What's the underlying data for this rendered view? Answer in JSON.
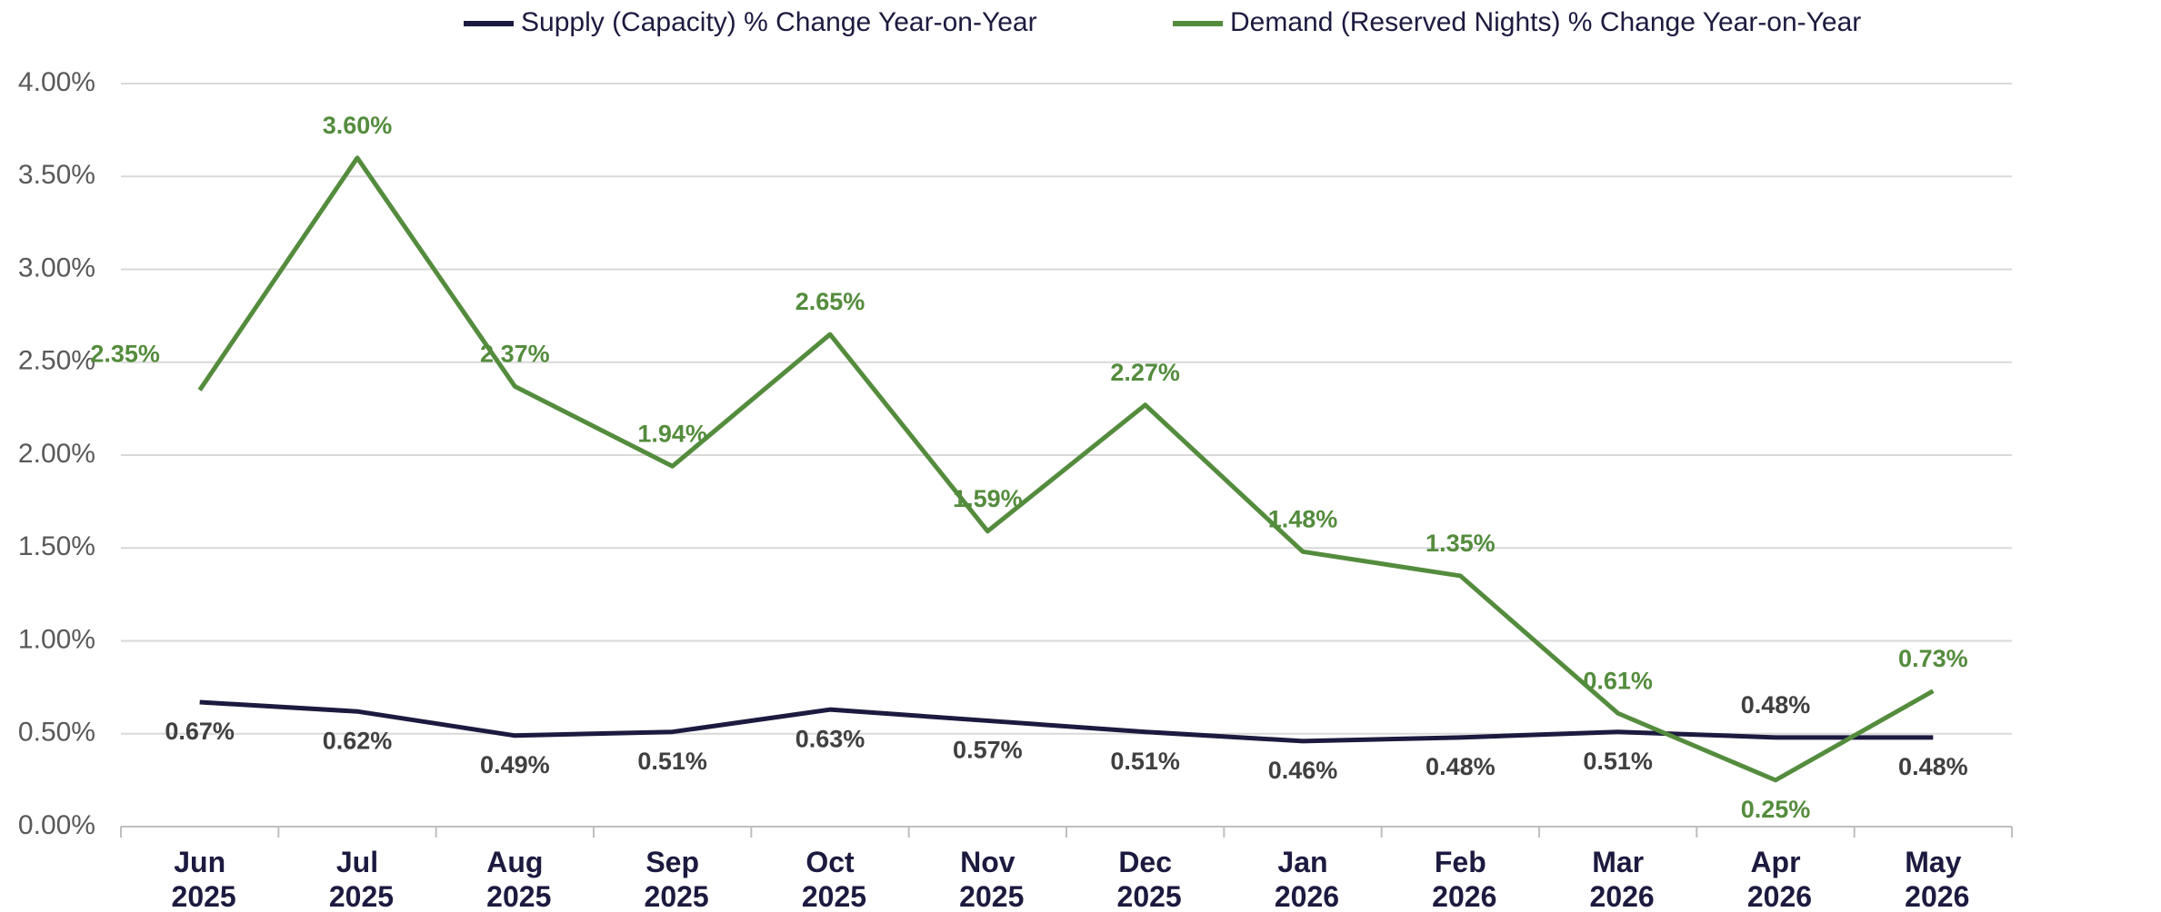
{
  "chart_data": {
    "type": "line",
    "categories": [
      "Jun 2025",
      "Jul 2025",
      "Aug 2025",
      "Sep 2025",
      "Oct 2025",
      "Nov 2025",
      "Dec 2025",
      "Jan 2026",
      "Feb 2026",
      "Mar 2026",
      "Apr 2026",
      "May 2026"
    ],
    "series": [
      {
        "name": "Supply (Capacity) % Change Year-on-Year",
        "color": "#1c1a3f",
        "values": [
          0.67,
          0.62,
          0.49,
          0.51,
          0.63,
          0.57,
          0.51,
          0.46,
          0.48,
          0.51,
          0.48,
          0.48
        ],
        "value_labels": [
          "0.67%",
          "0.62%",
          "0.49%",
          "0.51%",
          "0.63%",
          "0.57%",
          "0.51%",
          "0.46%",
          "0.48%",
          "0.51%",
          "0.48%",
          "0.48%"
        ]
      },
      {
        "name": "Demand (Reserved Nights) % Change Year-on-Year",
        "color": "#548c3d",
        "values": [
          2.35,
          3.6,
          2.37,
          1.94,
          2.65,
          1.59,
          2.27,
          1.48,
          1.35,
          0.61,
          0.25,
          0.73
        ],
        "value_labels": [
          "2.35%",
          "3.60%",
          "2.37%",
          "1.94%",
          "2.65%",
          "1.59%",
          "2.27%",
          "1.48%",
          "1.35%",
          "0.61%",
          "0.25%",
          "0.73%"
        ]
      }
    ],
    "ylim": [
      0,
      4
    ],
    "yticks": [
      {
        "value": 0,
        "label": "0.00%"
      },
      {
        "value": 0.5,
        "label": "0.50%"
      },
      {
        "value": 1,
        "label": "1.00%"
      },
      {
        "value": 1.5,
        "label": "1.50%"
      },
      {
        "value": 2,
        "label": "2.00%"
      },
      {
        "value": 2.5,
        "label": "2.50%"
      },
      {
        "value": 3,
        "label": "3.00%"
      },
      {
        "value": 3.5,
        "label": "3.50%"
      },
      {
        "value": 4,
        "label": "4.00%"
      }
    ],
    "grid": true,
    "legend": "top"
  }
}
